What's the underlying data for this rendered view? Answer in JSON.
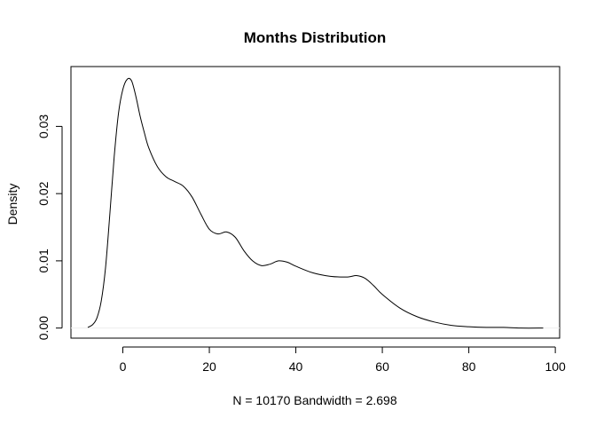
{
  "chart_data": {
    "type": "line",
    "title": "Months Distribution",
    "xlabel": "N = 10170   Bandwidth = 2.698",
    "ylabel": "Density",
    "xlim": [
      -12,
      101
    ],
    "ylim": [
      -0.0015,
      0.0389
    ],
    "grid": false,
    "x_ticks": [
      0,
      20,
      40,
      60,
      80,
      100
    ],
    "x_tick_labels": [
      "0",
      "20",
      "40",
      "60",
      "80",
      "100"
    ],
    "y_ticks": [
      0.0,
      0.01,
      0.02,
      0.03
    ],
    "y_tick_labels": [
      "0.00",
      "0.01",
      "0.02",
      "0.03"
    ],
    "baseline": 0,
    "series": [
      {
        "x": [
          -8.1,
          -7,
          -6,
          -5,
          -4,
          -3,
          -2,
          -1,
          0,
          1,
          2,
          3,
          4,
          5,
          6,
          8,
          10,
          12,
          14,
          16,
          18,
          20,
          22,
          24,
          26,
          28,
          30,
          32,
          34,
          36,
          38,
          40,
          44,
          48,
          52,
          54,
          56,
          58,
          60,
          64,
          68,
          72,
          76,
          80,
          84,
          88,
          92,
          97.2
        ],
        "y": [
          0.0001,
          0.0005,
          0.0015,
          0.004,
          0.009,
          0.017,
          0.0255,
          0.032,
          0.0355,
          0.037,
          0.0368,
          0.0345,
          0.0315,
          0.029,
          0.0268,
          0.024,
          0.0225,
          0.0218,
          0.0211,
          0.0195,
          0.017,
          0.0147,
          0.014,
          0.0143,
          0.0135,
          0.0115,
          0.01,
          0.0093,
          0.0095,
          0.01,
          0.0098,
          0.0092,
          0.0082,
          0.0077,
          0.0076,
          0.0078,
          0.0074,
          0.0063,
          0.005,
          0.003,
          0.0017,
          0.0009,
          0.0004,
          0.0002,
          0.0001,
          0.0001,
          0.0,
          0.0
        ]
      }
    ]
  }
}
